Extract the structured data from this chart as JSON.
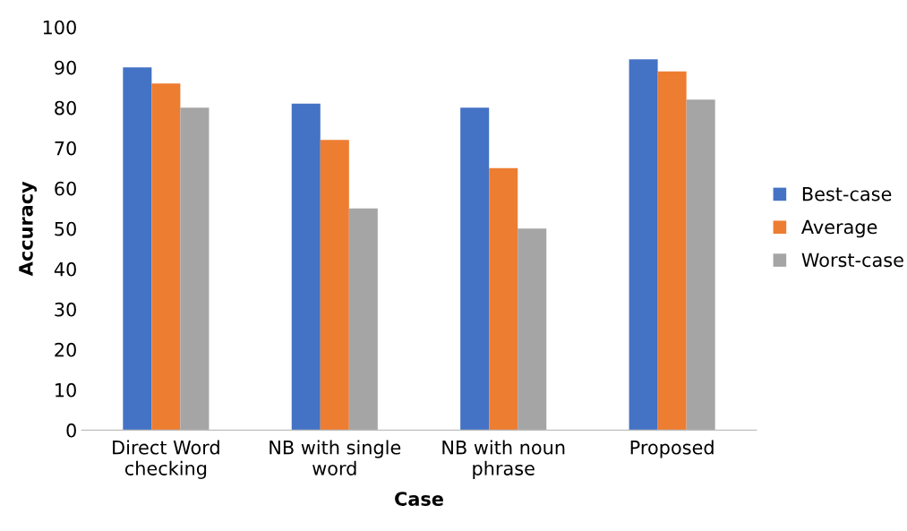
{
  "chart_data": {
    "type": "bar",
    "xlabel": "Case",
    "ylabel": "Accuracy",
    "categories": [
      "Direct Word\nchecking",
      "NB with single\nword",
      "NB with noun\nphrase",
      "Proposed"
    ],
    "series": [
      {
        "name": "Best-case",
        "color": "#4472c4",
        "values": [
          90,
          81,
          80,
          92
        ]
      },
      {
        "name": "Average",
        "color": "#ed7d31",
        "values": [
          86,
          72,
          65,
          89
        ]
      },
      {
        "name": "Worst-case",
        "color": "#a5a5a5",
        "values": [
          80,
          55,
          50,
          82
        ]
      }
    ],
    "ylim": [
      0,
      100
    ],
    "yticks": [
      0,
      10,
      20,
      30,
      40,
      50,
      60,
      70,
      80,
      90,
      100
    ],
    "grid": false,
    "legend": "right"
  }
}
